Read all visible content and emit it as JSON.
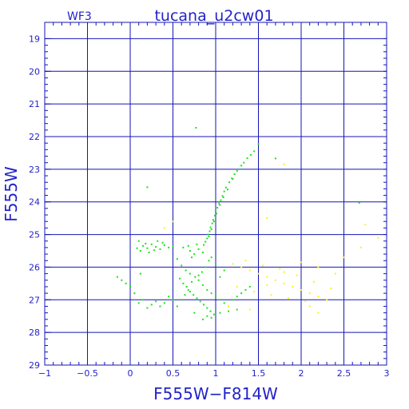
{
  "colors": {
    "axis": "#1414b4",
    "grid": "#1414b4",
    "text": "#2323c8",
    "green_points": "#1fe01f",
    "yellow_points": "#ffef1a",
    "background": "#ffffff"
  },
  "chart_data": {
    "type": "scatter",
    "title": "tucana_u2cw01",
    "chip_label": "WF3",
    "xlabel": "F555W−F814W",
    "ylabel": "F555W",
    "xlim": [
      -1,
      3
    ],
    "ylim": [
      29,
      18.5
    ],
    "y_inverted": true,
    "grid": true,
    "x_ticks": [
      -1,
      -0.5,
      0,
      0.5,
      1,
      1.5,
      2,
      2.5,
      3
    ],
    "x_tick_labels": [
      "−1",
      "−0.5",
      "0",
      "0.5",
      "1",
      "1.5",
      "2",
      "2.5",
      "3"
    ],
    "y_ticks": [
      19,
      20,
      21,
      22,
      23,
      24,
      25,
      26,
      27,
      28,
      29
    ],
    "y_tick_labels": [
      "19",
      "20",
      "21",
      "22",
      "23",
      "24",
      "25",
      "26",
      "27",
      "28",
      "29"
    ],
    "series": [
      {
        "color": "#1fe01f",
        "points": [
          [
            0.77,
            21.73
          ],
          [
            1.5,
            22.23
          ],
          [
            1.45,
            22.45
          ],
          [
            1.41,
            22.56
          ],
          [
            1.37,
            22.66
          ],
          [
            1.33,
            22.8
          ],
          [
            1.3,
            22.89
          ],
          [
            1.25,
            23.05
          ],
          [
            1.22,
            23.15
          ],
          [
            1.19,
            23.28
          ],
          [
            1.16,
            23.4
          ],
          [
            1.12,
            23.56
          ],
          [
            1.1,
            23.68
          ],
          [
            1.08,
            23.82
          ],
          [
            1.06,
            23.95
          ],
          [
            1.04,
            24.05
          ],
          [
            1.02,
            24.18
          ],
          [
            1.0,
            24.3
          ],
          [
            0.99,
            24.42
          ],
          [
            0.97,
            24.55
          ],
          [
            0.96,
            24.66
          ],
          [
            0.94,
            24.78
          ],
          [
            0.93,
            24.9
          ],
          [
            0.91,
            25.0
          ],
          [
            0.9,
            25.12
          ],
          [
            0.88,
            25.22
          ],
          [
            0.86,
            25.32
          ],
          [
            1.28,
            23.0
          ],
          [
            1.2,
            23.3
          ],
          [
            1.14,
            23.62
          ],
          [
            1.09,
            23.86
          ],
          [
            1.05,
            24.1
          ],
          [
            1.01,
            24.36
          ],
          [
            0.98,
            24.6
          ],
          [
            0.95,
            24.84
          ],
          [
            0.92,
            25.06
          ],
          [
            0.2,
            23.55
          ],
          [
            2.68,
            24.03
          ],
          [
            1.7,
            22.67
          ],
          [
            0.1,
            25.2
          ],
          [
            0.15,
            25.35
          ],
          [
            0.2,
            25.42
          ],
          [
            0.25,
            25.3
          ],
          [
            0.3,
            25.38
          ],
          [
            0.35,
            25.45
          ],
          [
            0.4,
            25.33
          ],
          [
            0.45,
            25.4
          ],
          [
            0.12,
            25.5
          ],
          [
            0.18,
            25.28
          ],
          [
            0.28,
            25.48
          ],
          [
            0.38,
            25.25
          ],
          [
            0.5,
            25.36
          ],
          [
            0.08,
            25.42
          ],
          [
            0.22,
            25.55
          ],
          [
            0.32,
            25.2
          ],
          [
            0.62,
            25.4
          ],
          [
            0.7,
            25.5
          ],
          [
            0.75,
            25.6
          ],
          [
            0.68,
            25.35
          ],
          [
            0.8,
            25.45
          ],
          [
            0.85,
            25.55
          ],
          [
            0.72,
            25.7
          ],
          [
            0.78,
            25.3
          ],
          [
            0.55,
            25.75
          ],
          [
            0.6,
            25.95
          ],
          [
            0.65,
            26.1
          ],
          [
            0.7,
            26.2
          ],
          [
            0.58,
            26.35
          ],
          [
            0.62,
            26.5
          ],
          [
            0.66,
            26.6
          ],
          [
            0.7,
            26.75
          ],
          [
            0.74,
            26.85
          ],
          [
            0.78,
            26.95
          ],
          [
            0.82,
            27.05
          ],
          [
            0.86,
            27.15
          ],
          [
            0.9,
            27.25
          ],
          [
            0.94,
            27.35
          ],
          [
            0.98,
            27.45
          ],
          [
            0.75,
            27.4
          ],
          [
            0.55,
            27.2
          ],
          [
            0.5,
            27.0
          ],
          [
            0.45,
            26.9
          ],
          [
            0.4,
            27.1
          ],
          [
            0.35,
            27.2
          ],
          [
            0.3,
            27.05
          ],
          [
            0.25,
            27.15
          ],
          [
            0.2,
            27.25
          ],
          [
            0.15,
            27.0
          ],
          [
            0.1,
            27.1
          ],
          [
            0.05,
            26.8
          ],
          [
            0.0,
            26.6
          ],
          [
            -0.05,
            26.5
          ],
          [
            -0.1,
            26.4
          ],
          [
            -0.15,
            26.3
          ],
          [
            0.12,
            26.2
          ],
          [
            0.8,
            26.4
          ],
          [
            0.85,
            26.55
          ],
          [
            0.9,
            26.7
          ],
          [
            0.95,
            26.8
          ],
          [
            1.0,
            26.9
          ],
          [
            1.05,
            27.0
          ],
          [
            1.1,
            27.1
          ],
          [
            1.15,
            27.2
          ],
          [
            1.2,
            27.0
          ],
          [
            1.25,
            26.9
          ],
          [
            1.3,
            26.8
          ],
          [
            1.35,
            26.7
          ],
          [
            1.4,
            26.6
          ],
          [
            1.05,
            26.3
          ],
          [
            1.1,
            26.1
          ],
          [
            1.0,
            25.9
          ],
          [
            0.95,
            25.7
          ],
          [
            0.92,
            25.8
          ],
          [
            0.88,
            26.0
          ],
          [
            0.84,
            26.15
          ],
          [
            0.8,
            26.25
          ],
          [
            0.76,
            26.3
          ],
          [
            0.72,
            26.45
          ],
          [
            0.68,
            26.7
          ],
          [
            0.64,
            26.85
          ],
          [
            0.6,
            27.0
          ],
          [
            0.9,
            27.5
          ],
          [
            0.85,
            27.6
          ],
          [
            0.95,
            27.55
          ],
          [
            1.05,
            27.4
          ],
          [
            1.15,
            27.35
          ],
          [
            1.25,
            27.3
          ]
        ]
      },
      {
        "color": "#ffef1a",
        "points": [
          [
            1.2,
            25.9
          ],
          [
            1.3,
            26.0
          ],
          [
            1.4,
            26.1
          ],
          [
            1.5,
            26.2
          ],
          [
            1.6,
            26.3
          ],
          [
            1.7,
            26.4
          ],
          [
            1.8,
            26.5
          ],
          [
            1.9,
            26.6
          ],
          [
            2.0,
            26.7
          ],
          [
            2.1,
            26.8
          ],
          [
            2.2,
            26.9
          ],
          [
            2.3,
            27.0
          ],
          [
            1.35,
            25.8
          ],
          [
            1.55,
            25.95
          ],
          [
            1.75,
            26.05
          ],
          [
            1.95,
            26.25
          ],
          [
            2.15,
            26.45
          ],
          [
            2.35,
            26.65
          ],
          [
            1.25,
            26.6
          ],
          [
            1.45,
            26.75
          ],
          [
            1.65,
            26.85
          ],
          [
            1.85,
            26.95
          ],
          [
            2.05,
            27.05
          ],
          [
            1.15,
            27.2
          ],
          [
            1.4,
            27.3
          ],
          [
            1.6,
            26.55
          ],
          [
            1.8,
            26.15
          ],
          [
            2.0,
            25.85
          ],
          [
            2.2,
            26.0
          ],
          [
            2.4,
            26.2
          ],
          [
            2.75,
            24.7
          ],
          [
            2.9,
            25.1
          ],
          [
            1.8,
            22.85
          ],
          [
            1.6,
            24.5
          ],
          [
            0.5,
            24.6
          ],
          [
            0.4,
            24.8
          ],
          [
            2.5,
            25.7
          ],
          [
            2.7,
            25.4
          ],
          [
            2.1,
            27.2
          ],
          [
            2.2,
            27.4
          ]
        ]
      }
    ]
  }
}
